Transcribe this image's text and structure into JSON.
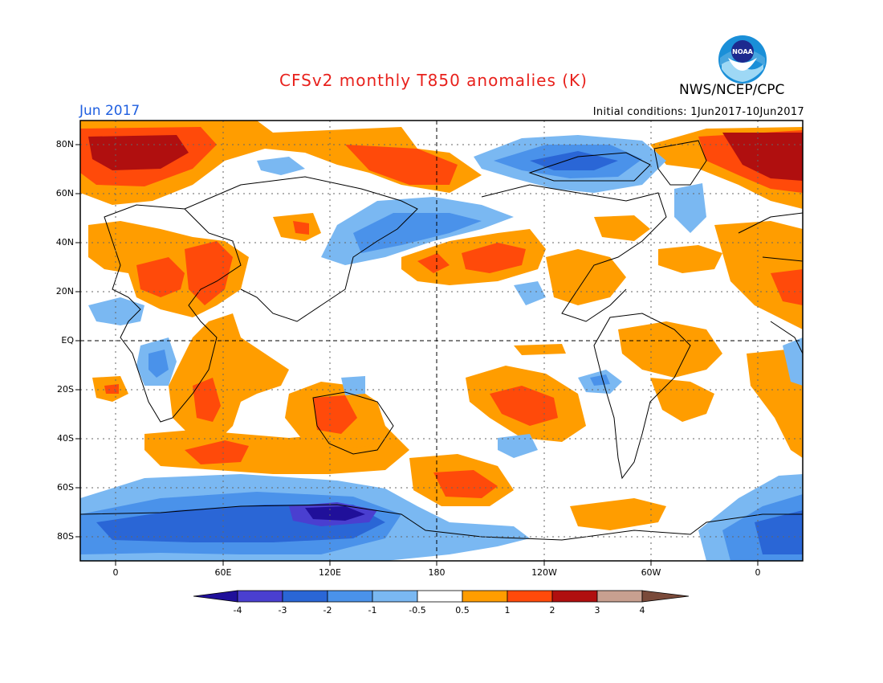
{
  "title": "CFSv2 monthly T850 anomalies (K)",
  "agency": "NWS/NCEP/CPC",
  "logo_text": "NOAA",
  "month": "Jun 2017",
  "initial_conditions": "Initial conditions: 1Jun2017-10Jun2017",
  "axes": {
    "latitude_labels": [
      "80N",
      "60N",
      "40N",
      "20N",
      "EQ",
      "20S",
      "40S",
      "60S",
      "80S"
    ],
    "longitude_labels": [
      "0",
      "60E",
      "120E",
      "180",
      "120W",
      "60W",
      "0"
    ]
  },
  "colorbar": {
    "labels": [
      "-4",
      "-3",
      "-2",
      "-1",
      "-0.5",
      "0.5",
      "1",
      "2",
      "3",
      "4"
    ],
    "colors": [
      "#20109a",
      "#4a3fd0",
      "#2a66d6",
      "#4a92ea",
      "#7ab8f2",
      "#ffffff",
      "#ff9d00",
      "#ff4a0a",
      "#b00f0f",
      "#c8a090",
      "#7a4a3a"
    ]
  }
}
